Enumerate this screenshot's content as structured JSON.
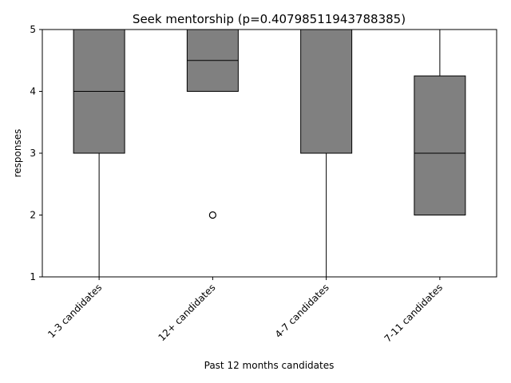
{
  "chart_data": {
    "type": "box",
    "title": "Seek mentorship (p=0.40798511943788385)",
    "xlabel": "Past 12 months candidates",
    "ylabel": "responses",
    "ylim": [
      1,
      5
    ],
    "yticks": [
      1,
      2,
      3,
      4,
      5
    ],
    "categories": [
      "1-3 candidates",
      "12+ candidates",
      "4-7 candidates",
      "7-11 candidates"
    ],
    "boxes": [
      {
        "category": "1-3 candidates",
        "whisker_low": 1,
        "q1": 3,
        "median": 4,
        "q3": 5,
        "whisker_high": 5,
        "outliers": []
      },
      {
        "category": "12+ candidates",
        "whisker_low": 4,
        "q1": 4,
        "median": 4.5,
        "q3": 5,
        "whisker_high": 5,
        "outliers": [
          2
        ]
      },
      {
        "category": "4-7 candidates",
        "whisker_low": 1,
        "q1": 3,
        "median": 3,
        "q3": 5,
        "whisker_high": 5,
        "outliers": []
      },
      {
        "category": "7-11 candidates",
        "whisker_low": 2,
        "q1": 2,
        "median": 3,
        "q3": 4.25,
        "whisker_high": 5,
        "outliers": []
      }
    ],
    "box_color": "#808080",
    "edge_color": "#000000",
    "grid": false,
    "legend": "none"
  }
}
